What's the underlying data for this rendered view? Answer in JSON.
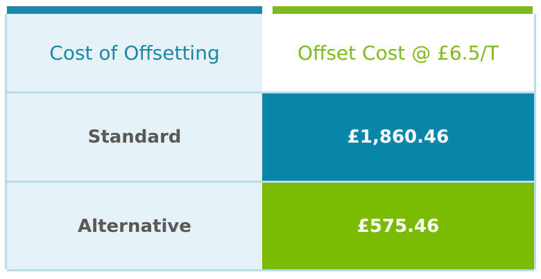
{
  "table": {
    "headers": {
      "left": "Cost of Offsetting",
      "right": "Offset Cost @ £6.5/T"
    },
    "rows": [
      {
        "label": "Standard",
        "value": "£1,860.46"
      },
      {
        "label": "Alternative",
        "value": "£575.46"
      }
    ]
  },
  "colors": {
    "teal_accent": "#1b87a9",
    "green_accent": "#7bbb1b",
    "light_panel": "#e7f2f6",
    "standard_value_bg": "#0a86aa",
    "alternative_value_bg": "#7bbb05",
    "label_text": "#595959"
  }
}
